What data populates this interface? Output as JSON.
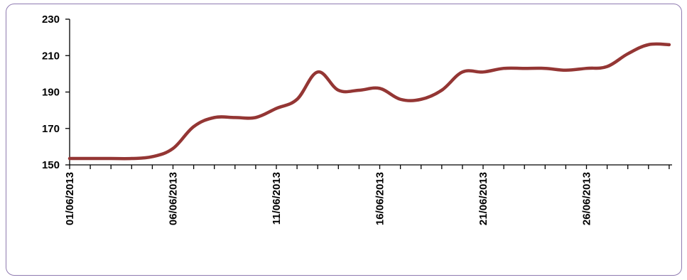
{
  "chart_data": {
    "type": "line",
    "title": "",
    "xlabel": "",
    "ylabel": "",
    "ylim": [
      150,
      230
    ],
    "y_ticks": [
      "150",
      "170",
      "190",
      "210",
      "230"
    ],
    "x_tick_labels": [
      "01/06/2013",
      "06/06/2013",
      "11/06/2013",
      "16/06/2013",
      "21/06/2013",
      "26/06/2013"
    ],
    "x": [
      "01/06/2013",
      "02/06/2013",
      "03/06/2013",
      "04/06/2013",
      "05/06/2013",
      "06/06/2013",
      "07/06/2013",
      "08/06/2013",
      "09/06/2013",
      "10/06/2013",
      "11/06/2013",
      "12/06/2013",
      "13/06/2013",
      "14/06/2013",
      "15/06/2013",
      "16/06/2013",
      "17/06/2013",
      "18/06/2013",
      "19/06/2013",
      "20/06/2013",
      "21/06/2013",
      "22/06/2013",
      "23/06/2013",
      "24/06/2013",
      "25/06/2013",
      "26/06/2013",
      "27/06/2013",
      "28/06/2013",
      "29/06/2013",
      "30/06/2013"
    ],
    "series": [
      {
        "values": [
          153.5,
          153.5,
          153.5,
          153.5,
          154.5,
          159,
          171,
          176,
          176,
          176,
          181,
          186,
          201,
          191,
          191,
          192,
          186,
          186,
          191,
          201,
          201,
          203,
          203,
          203,
          202,
          203,
          204,
          211,
          216,
          216
        ],
        "color": "#943634"
      }
    ],
    "grid": false,
    "legend": "none"
  }
}
